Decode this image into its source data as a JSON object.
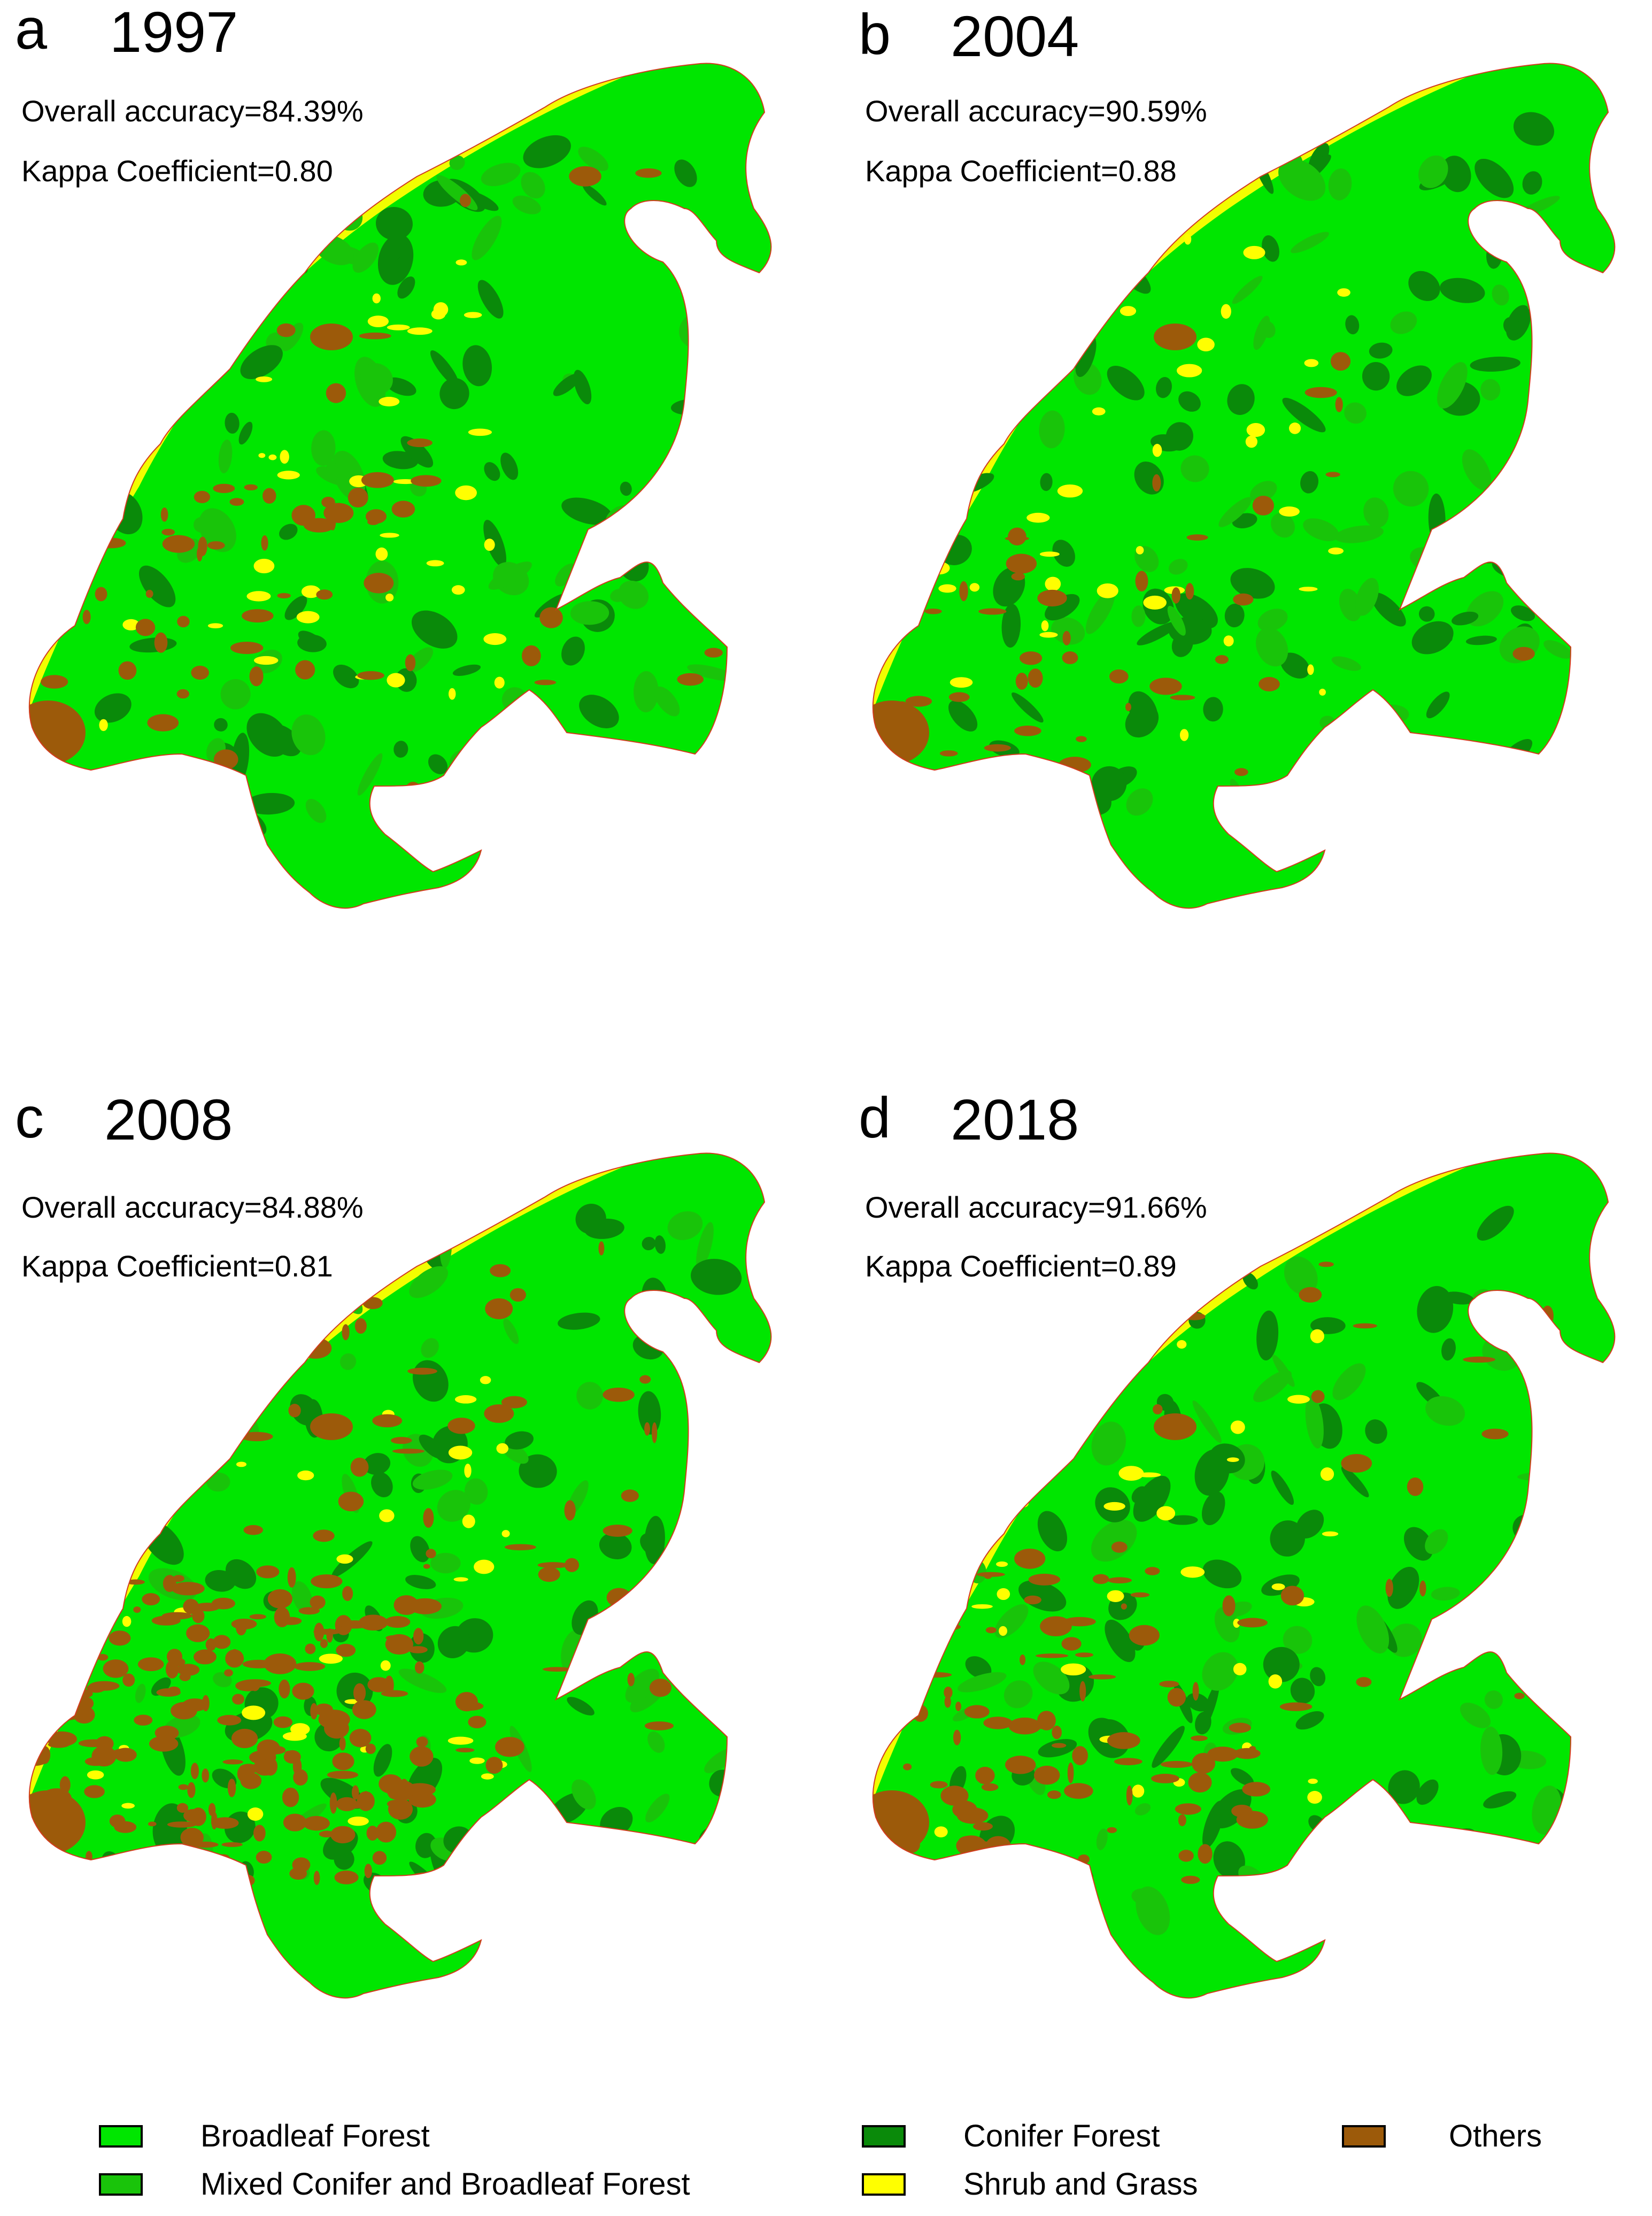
{
  "panels": [
    {
      "letter": "a",
      "year": "1997",
      "accuracy": "Overall accuracy=84.39%",
      "kappa": "Kappa Coefficient=0.80",
      "others_level": 0.1,
      "shrub_level": 0.35
    },
    {
      "letter": "b",
      "year": "2004",
      "accuracy": "Overall accuracy=90.59%",
      "kappa": "Kappa Coefficient=0.88",
      "others_level": 0.07,
      "shrub_level": 0.3
    },
    {
      "letter": "c",
      "year": "2008",
      "accuracy": "Overall accuracy=84.88%",
      "kappa": "Kappa Coefficient=0.81",
      "others_level": 0.4,
      "shrub_level": 0.3
    },
    {
      "letter": "d",
      "year": "2018",
      "accuracy": "Overall accuracy=91.66%",
      "kappa": "Kappa Coefficient=0.89",
      "others_level": 0.18,
      "shrub_level": 0.3
    }
  ],
  "legend": [
    {
      "label": "Broadleaf Forest",
      "color": "#00e600"
    },
    {
      "label": "Mixed Conifer and Broadleaf Forest",
      "color": "#19c40a"
    },
    {
      "label": "Conifer Forest",
      "color": "#0a8a0a"
    },
    {
      "label": "Shrub and Grass",
      "color": "#ffff00"
    },
    {
      "label": "Others",
      "color": "#9c5a0a"
    }
  ]
}
